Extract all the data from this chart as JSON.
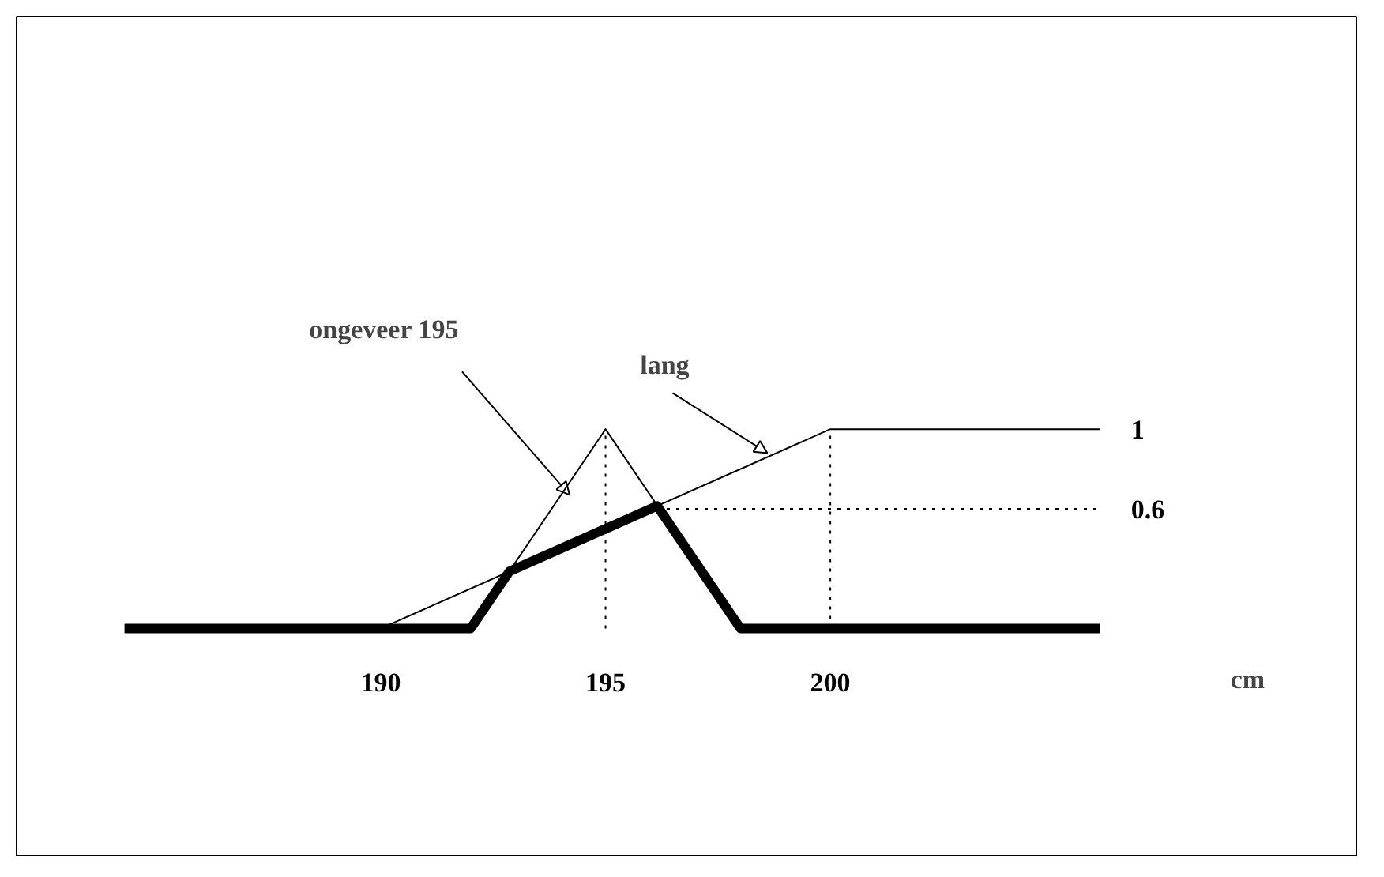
{
  "chart_data": {
    "type": "line",
    "xlabel": "cm",
    "xlim": [
      181.9,
      211.7
    ],
    "ylim": [
      -1.14,
      3.07
    ],
    "xticks": [
      190,
      195,
      200
    ],
    "yticks": [
      0.6,
      1
    ],
    "grid": false,
    "series": [
      {
        "color": "#000000",
        "x": [
          192,
          195,
          198
        ],
        "values": [
          0,
          1,
          0
        ],
        "line_style": "solid"
      },
      {
        "color": "#000000",
        "x": [
          190,
          200,
          206
        ],
        "values": [
          0,
          1,
          1
        ],
        "line_style": "solid"
      },
      {
        "color": "#000000",
        "x": [
          184.3,
          192,
          192.86,
          196.15,
          198,
          206
        ],
        "values": [
          0,
          0,
          0.286,
          0.615,
          0,
          0
        ],
        "line_style": "solid"
      },
      {
        "color": "#000000",
        "x": [
          195,
          195
        ],
        "values": [
          0,
          1
        ],
        "line_style": "dotted"
      },
      {
        "color": "#000000",
        "x": [
          200,
          200
        ],
        "values": [
          0,
          1
        ],
        "line_style": "dotted"
      },
      {
        "color": "#000000",
        "x": [
          196.15,
          206
        ],
        "values": [
          0.6,
          0.6
        ],
        "line_style": "dotted"
      }
    ],
    "annotations": [
      {
        "text": "ongeveer 195",
        "x": 194.2,
        "y": 0.67
      },
      {
        "text": "lang",
        "x": 198.6,
        "y": 0.88
      }
    ]
  }
}
